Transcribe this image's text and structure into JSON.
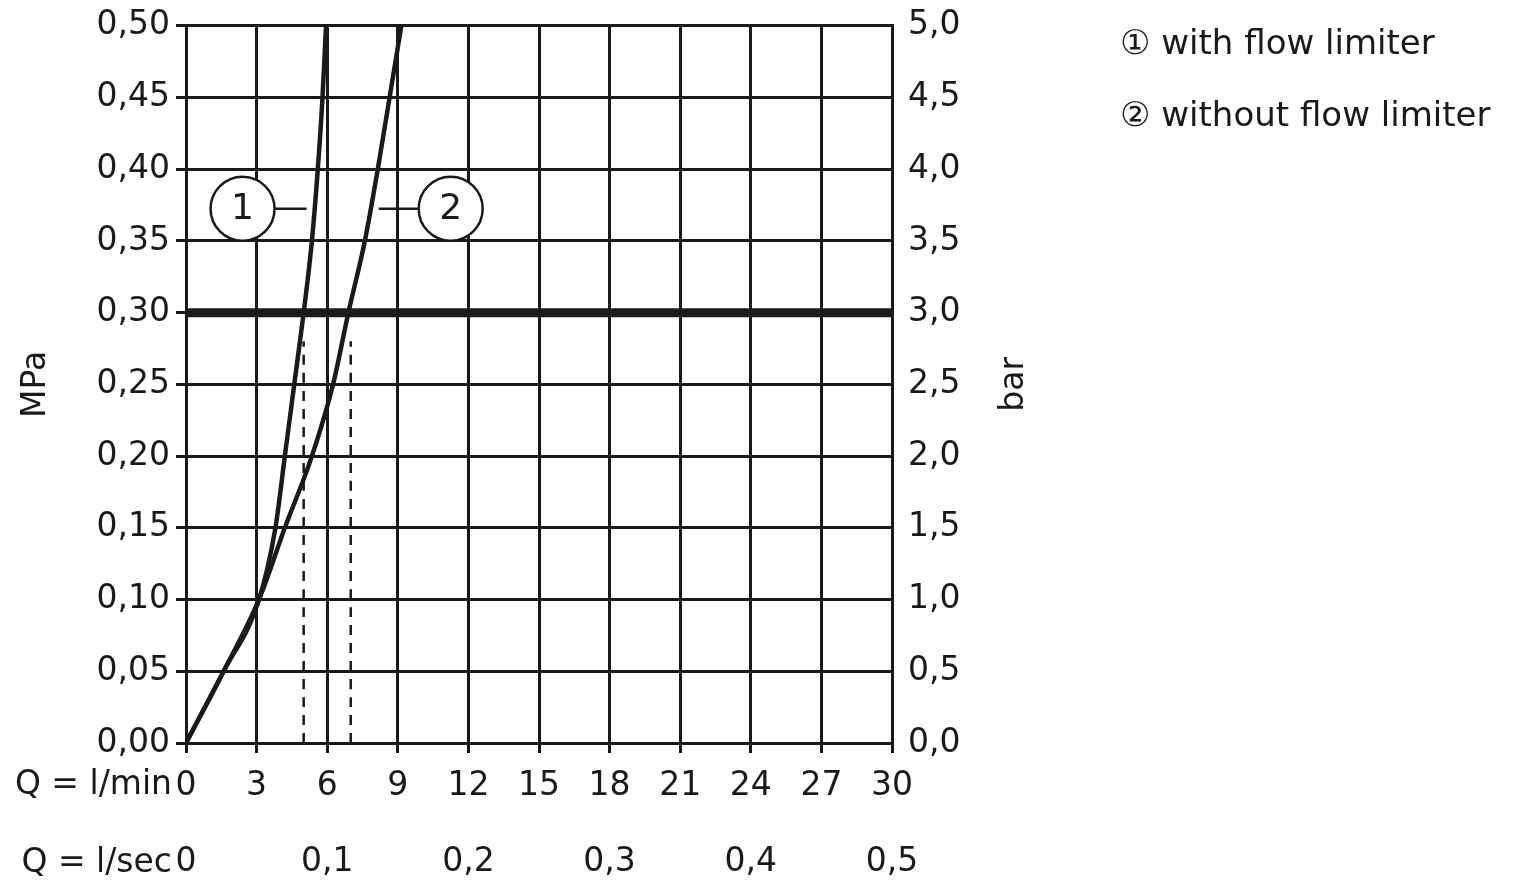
{
  "chart_data": {
    "type": "line",
    "xlabel": "Q = l/min",
    "x2label": "Q = l/sec",
    "ylabel": "MPa",
    "y2label": "bar",
    "xlim": [
      0,
      30
    ],
    "xticks": [
      0,
      3,
      6,
      9,
      12,
      15,
      18,
      21,
      24,
      27,
      30
    ],
    "x2lim": [
      0,
      0.5
    ],
    "x2ticks": [
      {
        "value": 0,
        "label": "0"
      },
      {
        "value": 0.1,
        "label": "0,1"
      },
      {
        "value": 0.2,
        "label": "0,2"
      },
      {
        "value": 0.3,
        "label": "0,3"
      },
      {
        "value": 0.4,
        "label": "0,4"
      },
      {
        "value": 0.5,
        "label": "0,5"
      }
    ],
    "ylim": [
      0,
      0.5
    ],
    "yticks": [
      {
        "value": 0,
        "label": "0,00"
      },
      {
        "value": 0.05,
        "label": "0,05"
      },
      {
        "value": 0.1,
        "label": "0,10"
      },
      {
        "value": 0.15,
        "label": "0,15"
      },
      {
        "value": 0.2,
        "label": "0,20"
      },
      {
        "value": 0.25,
        "label": "0,25"
      },
      {
        "value": 0.3,
        "label": "0,30"
      },
      {
        "value": 0.35,
        "label": "0,35"
      },
      {
        "value": 0.4,
        "label": "0,40"
      },
      {
        "value": 0.45,
        "label": "0,45"
      },
      {
        "value": 0.5,
        "label": "0,50"
      }
    ],
    "y2lim": [
      0,
      5
    ],
    "y2ticks": [
      {
        "value": 0,
        "label": "0,0"
      },
      {
        "value": 0.5,
        "label": "0,5"
      },
      {
        "value": 1,
        "label": "1,0"
      },
      {
        "value": 1.5,
        "label": "1,5"
      },
      {
        "value": 2,
        "label": "2,0"
      },
      {
        "value": 2.5,
        "label": "2,5"
      },
      {
        "value": 3,
        "label": "3,0"
      },
      {
        "value": 3.5,
        "label": "3,5"
      },
      {
        "value": 4,
        "label": "4,0"
      },
      {
        "value": 4.5,
        "label": "4,5"
      },
      {
        "value": 5,
        "label": "5,0"
      }
    ],
    "grid": true,
    "legend": "top right",
    "marker": "none",
    "series": [
      {
        "name": "① with flow limiter",
        "color": "#1a1a1a",
        "x": [
          0,
          1.6,
          3.1,
          3.8,
          4.2,
          4.6,
          5.0,
          5.35,
          5.6,
          5.8,
          5.95
        ],
        "values": [
          0,
          0.05,
          0.1,
          0.15,
          0.2,
          0.25,
          0.3,
          0.35,
          0.4,
          0.45,
          0.5
        ]
      },
      {
        "name": "② without flow limiter",
        "color": "#1a1a1a",
        "x": [
          0,
          1.6,
          3.1,
          4.2,
          5.35,
          6.25,
          6.9,
          7.6,
          8.15,
          8.65,
          9.15
        ],
        "values": [
          0,
          0.05,
          0.1,
          0.15,
          0.2,
          0.25,
          0.3,
          0.35,
          0.4,
          0.45,
          0.5
        ]
      },
      {
        "type": "line",
        "color": "#1a1a1a",
        "line_style": "dashed",
        "x": [
          5,
          5
        ],
        "values": [
          0,
          0.28
        ]
      },
      {
        "type": "line",
        "color": "#1a1a1a",
        "line_style": "dashed",
        "x": [
          7,
          7
        ],
        "values": [
          0,
          0.28
        ]
      }
    ],
    "ref_lines": [
      {
        "axis": "y",
        "value": 0.3,
        "color": "#1a1a1a"
      }
    ],
    "annotations": [
      "1",
      "2"
    ]
  }
}
